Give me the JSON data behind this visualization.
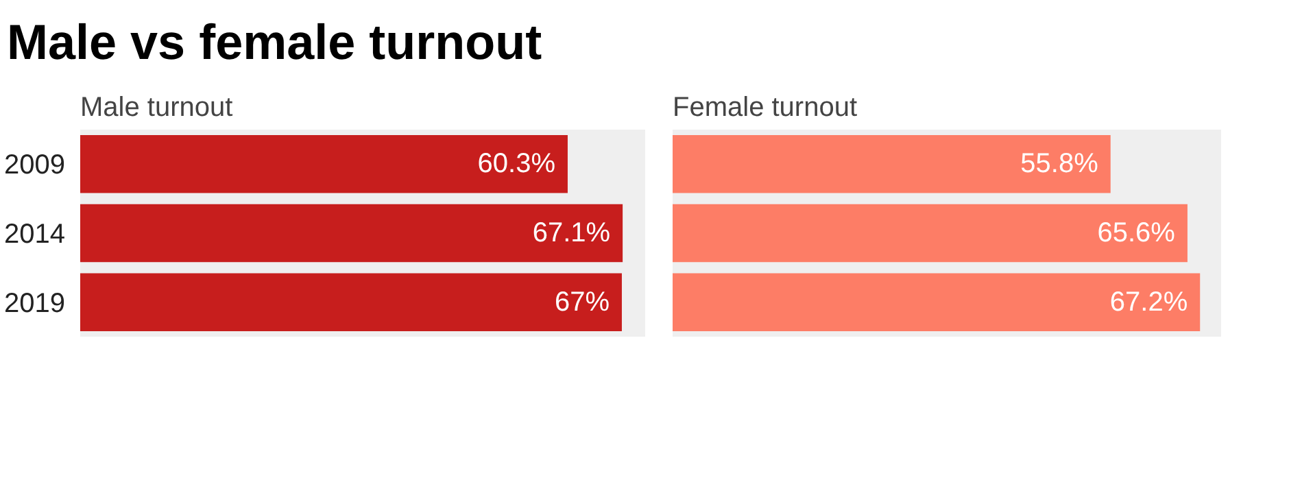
{
  "chart_data": [
    {
      "type": "bar",
      "orientation": "horizontal",
      "title": "Male vs female turnout",
      "subtitle": "Male turnout",
      "categories": [
        "2009",
        "2014",
        "2019"
      ],
      "values": [
        60.3,
        67.1,
        67
      ],
      "color": "#c71e1d",
      "value_labels": [
        "60.3%",
        "67.1%",
        "67%"
      ],
      "grid": false
    },
    {
      "type": "bar",
      "orientation": "horizontal",
      "subtitle": "Female turnout",
      "categories": [
        "2009",
        "2014",
        "2019"
      ],
      "values": [
        55.8,
        65.6,
        67.2
      ],
      "color": "#fd7d66",
      "value_labels": [
        "55.8%",
        "65.6%",
        "67.2%"
      ],
      "grid": false,
      "tick_labels": false
    }
  ]
}
